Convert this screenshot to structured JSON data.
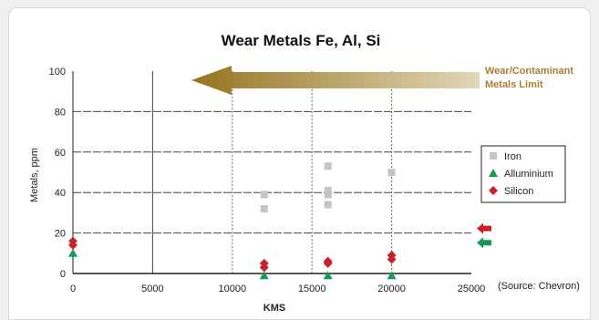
{
  "chart_data": {
    "type": "scatter",
    "title": "Wear Metals Fe, Al, Si",
    "xlabel": "KMS",
    "ylabel": "Metals, ppm",
    "xlim": [
      0,
      25000
    ],
    "ylim": [
      0,
      100
    ],
    "xticks": [
      0,
      5000,
      10000,
      15000,
      20000,
      25000
    ],
    "yticks": [
      0,
      20,
      40,
      60,
      80,
      100
    ],
    "grid": true,
    "legend_position": "right",
    "series": [
      {
        "name": "Iron",
        "marker": "square",
        "color": "#c4c4c4",
        "points": [
          [
            12000,
            39
          ],
          [
            12000,
            32
          ],
          [
            16000,
            53
          ],
          [
            16000,
            41
          ],
          [
            16000,
            39
          ],
          [
            16000,
            34
          ],
          [
            20000,
            50
          ]
        ]
      },
      {
        "name": "Alluminium",
        "marker": "triangle",
        "color": "#169a55",
        "points": [
          [
            0,
            10
          ],
          [
            12000,
            -1
          ],
          [
            16000,
            -1
          ],
          [
            20000,
            -1
          ]
        ]
      },
      {
        "name": "Silicon",
        "marker": "diamond",
        "color": "#c8202c",
        "points": [
          [
            0,
            16
          ],
          [
            0,
            14
          ],
          [
            12000,
            5
          ],
          [
            12000,
            3
          ],
          [
            16000,
            6
          ],
          [
            16000,
            5
          ],
          [
            20000,
            9
          ],
          [
            20000,
            7
          ]
        ]
      }
    ],
    "limit_label_line1": "Wear/Contaminant",
    "limit_label_line2": "Metals Limit",
    "limit_arrow_color_start": "#95741d",
    "limit_arrow_color_end": "#e3d7b9",
    "marker_arrows": [
      {
        "y": 22,
        "color": "#c8202c"
      },
      {
        "y": 15,
        "color": "#169a55"
      }
    ],
    "source": "(Source: Chevron)"
  }
}
